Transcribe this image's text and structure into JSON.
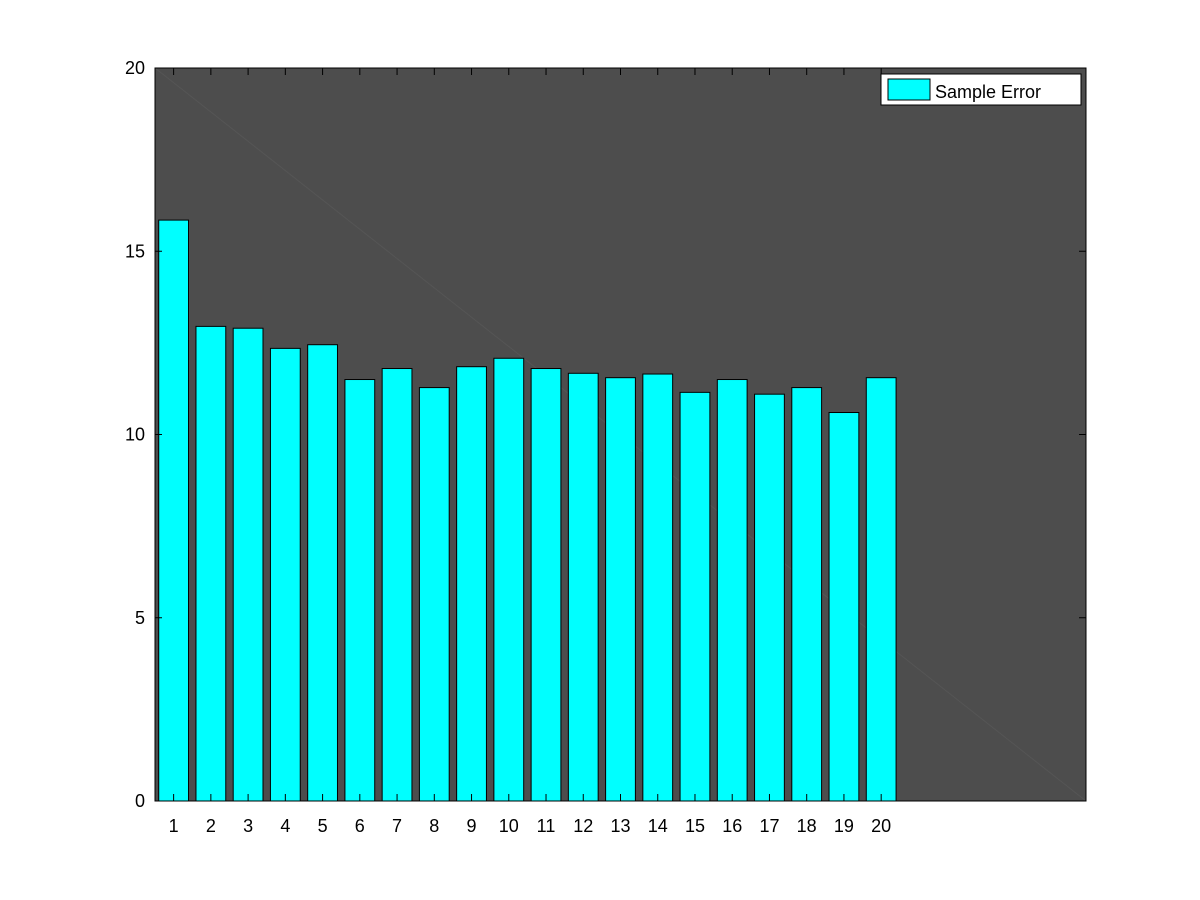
{
  "chart_data": {
    "type": "bar",
    "title": "",
    "xlabel": "",
    "ylabel": "",
    "categories": [
      "1",
      "2",
      "3",
      "4",
      "5",
      "6",
      "7",
      "8",
      "9",
      "10",
      "11",
      "12",
      "13",
      "14",
      "15",
      "16",
      "17",
      "18",
      "19",
      "20"
    ],
    "series": [
      {
        "name": "Sample Error",
        "values": [
          15.85,
          12.95,
          12.9,
          12.35,
          12.45,
          11.5,
          11.8,
          11.28,
          11.85,
          12.08,
          11.8,
          11.67,
          11.55,
          11.65,
          11.15,
          11.5,
          11.1,
          11.28,
          10.6,
          11.55
        ]
      }
    ],
    "ylim": [
      0,
      20
    ],
    "xlim": [
      0.5,
      25.5
    ],
    "yticks": [
      "0",
      "5",
      "10",
      "15",
      "20"
    ],
    "grid": false,
    "legend_position": "top-right",
    "colors": {
      "bar_fill": "#00ffff",
      "bar_edge": "#000000",
      "plot_background": "#4d4d4d",
      "diagonal_line": "#555555"
    }
  }
}
